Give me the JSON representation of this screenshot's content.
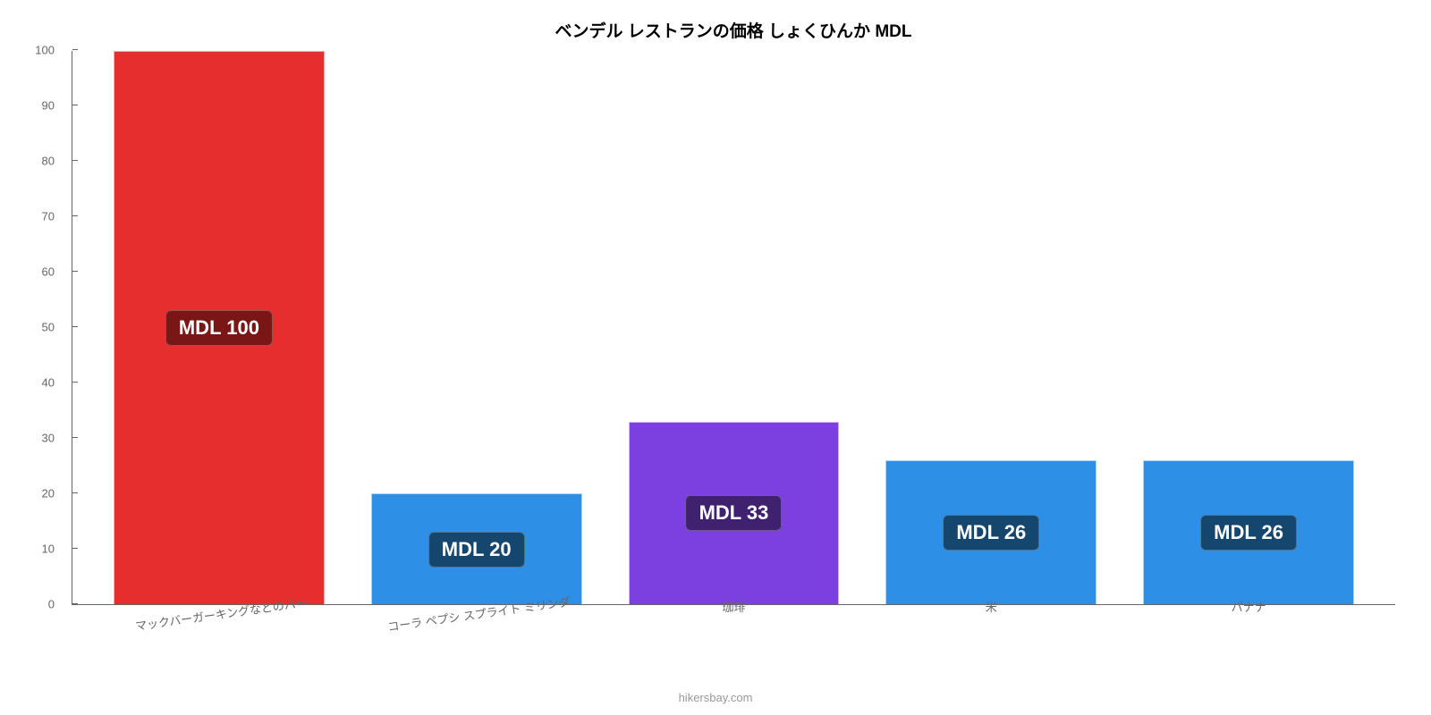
{
  "chart": {
    "type": "bar",
    "title": "ベンデル レストランの価格 しょくひんか MDL",
    "title_fontsize": 19,
    "attribution": "hikersbay.com",
    "background_color": "#ffffff",
    "axis_color": "#666666",
    "label_color": "#666666",
    "ylim": [
      0,
      100
    ],
    "ytick_step": 10,
    "yticks": [
      0,
      10,
      20,
      30,
      40,
      50,
      60,
      70,
      80,
      90,
      100
    ],
    "label_fontsize": 13,
    "value_label_fontsize": 22,
    "bar_width": 0.82,
    "categories": [
      "マックバーガーキングなどのバー",
      "コーラ ペプシ スプライト ミリンダ",
      "珈琲",
      "米",
      "バナナ"
    ],
    "category_rotated": [
      true,
      true,
      false,
      false,
      false
    ],
    "values": [
      100,
      20,
      33,
      26,
      26
    ],
    "value_labels": [
      "MDL 100",
      "MDL 20",
      "MDL 33",
      "MDL 26",
      "MDL 26"
    ],
    "bar_colors": [
      "#e62e2e",
      "#2e8fe6",
      "#7c3fe0",
      "#2e8fe6",
      "#2e8fe6"
    ],
    "badge_colors": [
      "#7a1616",
      "#15476e",
      "#3f2170",
      "#15476e",
      "#15476e"
    ],
    "badge_text_color": "#ffffff"
  }
}
